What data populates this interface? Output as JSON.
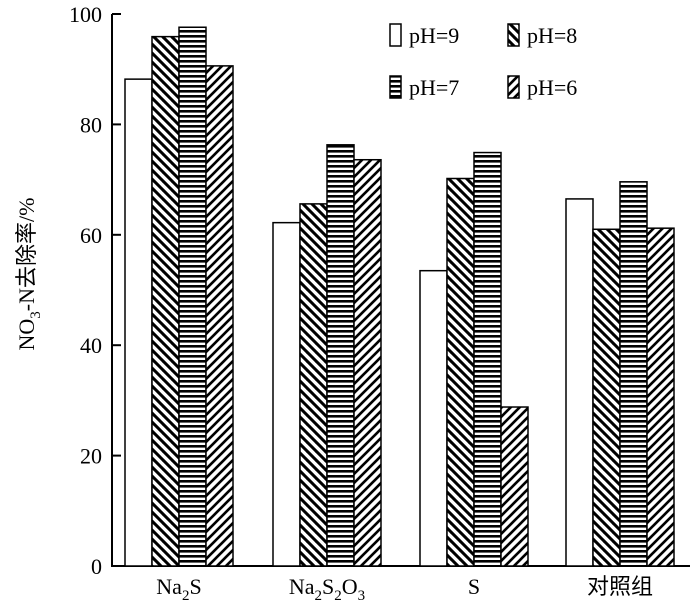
{
  "chart_data": {
    "type": "bar",
    "ylabel": {
      "main": "NO",
      "sub": "3",
      "rest": "-N去除率/%"
    },
    "ylim": [
      0,
      100
    ],
    "yticks": [
      0,
      20,
      40,
      60,
      80,
      100
    ],
    "categories": [
      {
        "label": "Na2S",
        "parts": [
          {
            "t": "Na"
          },
          {
            "t": "2",
            "sub": true
          },
          {
            "t": "S"
          }
        ]
      },
      {
        "label": "Na2S2O3",
        "parts": [
          {
            "t": "Na"
          },
          {
            "t": "2",
            "sub": true
          },
          {
            "t": "S"
          },
          {
            "t": "2",
            "sub": true
          },
          {
            "t": "O"
          },
          {
            "t": "3",
            "sub": true
          }
        ]
      },
      {
        "label": "S",
        "parts": [
          {
            "t": "S"
          }
        ]
      },
      {
        "label": "对照组",
        "parts": [
          {
            "t": "对照组"
          }
        ]
      }
    ],
    "series": [
      {
        "name": "pH=9",
        "pattern": "none",
        "values": [
          88.2,
          62.2,
          53.5,
          66.5
        ]
      },
      {
        "name": "pH=8",
        "pattern": "diag-down",
        "values": [
          95.9,
          65.6,
          70.2,
          61.0
        ]
      },
      {
        "name": "pH=7",
        "pattern": "horizontal",
        "values": [
          97.6,
          76.3,
          74.9,
          69.6
        ]
      },
      {
        "name": "pH=6",
        "pattern": "diag-up",
        "values": [
          90.6,
          73.6,
          28.8,
          61.2
        ]
      }
    ],
    "legend_position": "top-right",
    "grid": false
  }
}
